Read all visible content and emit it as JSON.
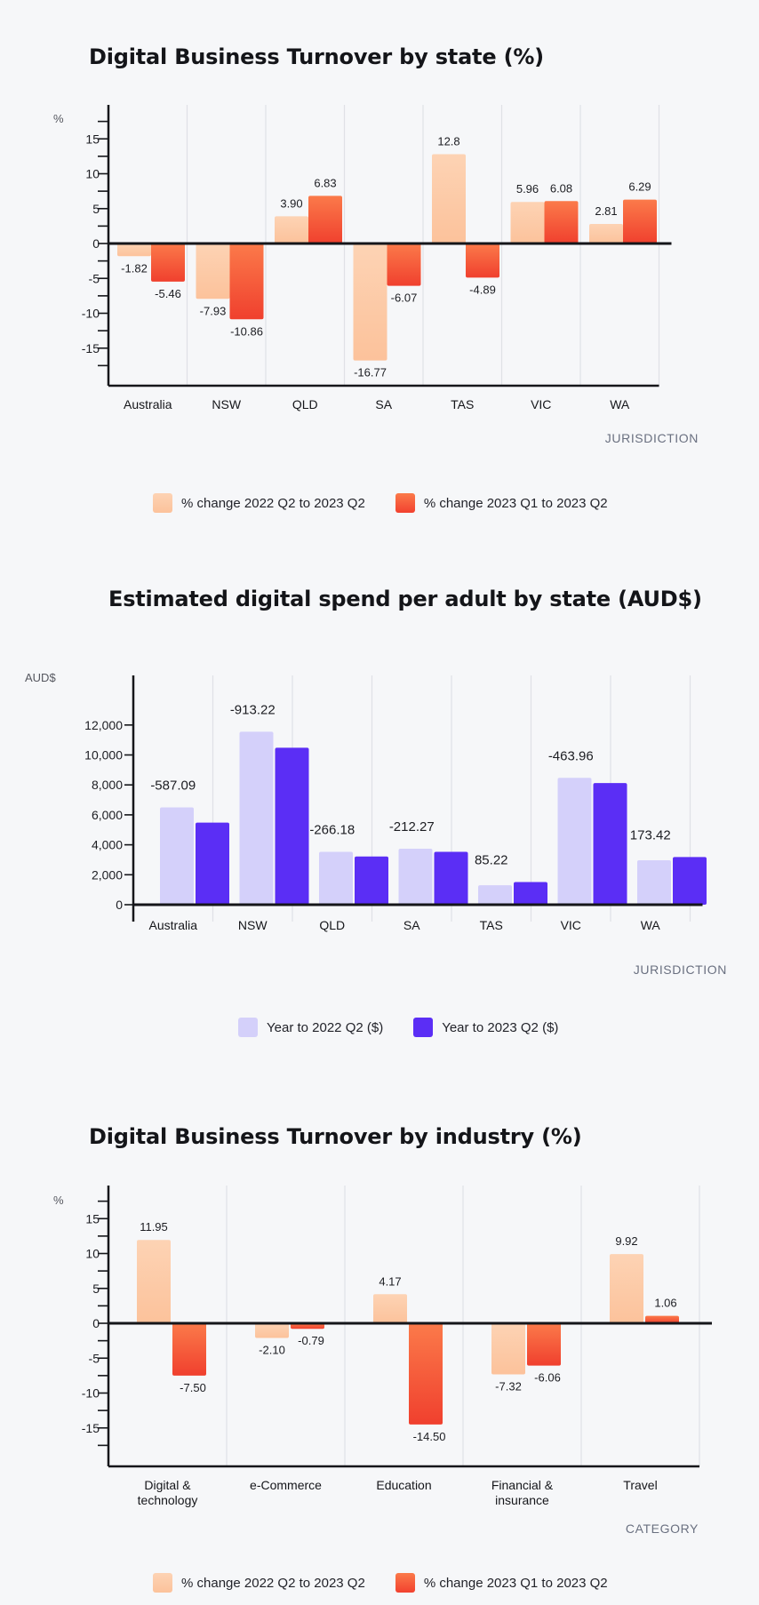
{
  "chart_data": [
    {
      "id": "state_turnover",
      "type": "bar",
      "title": "Digital Business Turnover by state (%)",
      "ylabel": "%",
      "xlabel": "JURISDICTION",
      "ylim": [
        -20,
        16
      ],
      "yticks": [
        -15,
        -10,
        -5,
        0,
        5,
        10,
        15
      ],
      "categories": [
        "Australia",
        "NSW",
        "QLD",
        "SA",
        "TAS",
        "VIC",
        "WA"
      ],
      "series": [
        {
          "name": "% change 2022 Q2 to 2023 Q2",
          "color": "#fdc9a6",
          "values": [
            -1.82,
            -7.93,
            3.9,
            -16.77,
            12.8,
            5.96,
            2.81
          ],
          "labels": [
            "-1.82",
            "-7.93",
            "3.90",
            "-16.77",
            "12.8",
            "5.96",
            "2.81"
          ]
        },
        {
          "name": "% change 2023 Q1 to 2023 Q2",
          "color": "#fb5c3b",
          "values": [
            -5.46,
            -10.86,
            6.83,
            -6.07,
            -4.89,
            6.08,
            6.29
          ],
          "labels": [
            "-5.46",
            "-10.86",
            "6.83",
            "-6.07",
            "-4.89",
            "6.08",
            "6.29"
          ]
        }
      ],
      "legend": "bottom-center"
    },
    {
      "id": "state_spend",
      "type": "bar",
      "title": "Estimated digital spend per adult by state (AUD$)",
      "ylabel": "AUD$",
      "xlabel": "JURISDICTION",
      "ylim": [
        0,
        13000
      ],
      "yticks": [
        0,
        2000,
        4000,
        6000,
        8000,
        10000,
        12000
      ],
      "ytick_labels": [
        "0",
        "2,000",
        "4,000",
        "6,000",
        "8,000",
        "10,000",
        "12,000"
      ],
      "categories": [
        "Australia",
        "NSW",
        "QLD",
        "SA",
        "TAS",
        "VIC",
        "WA"
      ],
      "series": [
        {
          "name": "Year to 2022 Q2 ($)",
          "color": "#d4d0fa",
          "values": [
            6500,
            11550,
            3530,
            3740,
            1300,
            8470,
            2970
          ]
        },
        {
          "name": "Year to 2023 Q2 ($)",
          "color": "#5b2ef5",
          "values": [
            5480,
            10480,
            3220,
            3530,
            1510,
            8120,
            3180
          ]
        }
      ],
      "annotations": [
        "-587.09",
        "-913.22",
        "-266.18",
        "-212.27",
        "85.22",
        "-463.96",
        "173.42"
      ],
      "legend": "bottom-center"
    },
    {
      "id": "industry_turnover",
      "type": "bar",
      "title": "Digital Business Turnover by industry (%)",
      "ylabel": "%",
      "xlabel": "CATEGORY",
      "ylim": [
        -20,
        16
      ],
      "yticks": [
        -15,
        -10,
        -5,
        0,
        5,
        10,
        15
      ],
      "categories": [
        [
          "Digital &",
          "technology"
        ],
        [
          "e-Commerce"
        ],
        [
          "Education"
        ],
        [
          "Financial &",
          "insurance"
        ],
        [
          "Travel"
        ]
      ],
      "series": [
        {
          "name": "% change 2022 Q2 to 2023 Q2",
          "color": "#fdc9a6",
          "values": [
            11.95,
            -2.1,
            4.17,
            -7.32,
            9.92
          ],
          "labels": [
            "11.95",
            "-2.10",
            "4.17",
            "-7.32",
            "9.92"
          ]
        },
        {
          "name": "% change 2023 Q1 to 2023 Q2",
          "color": "#fb5c3b",
          "values": [
            -7.5,
            -0.79,
            -14.5,
            -6.06,
            1.06
          ],
          "labels": [
            "-7.50",
            "-0.79",
            "-14.50",
            "-6.06",
            "1.06"
          ]
        }
      ],
      "legend": "bottom-center"
    }
  ]
}
